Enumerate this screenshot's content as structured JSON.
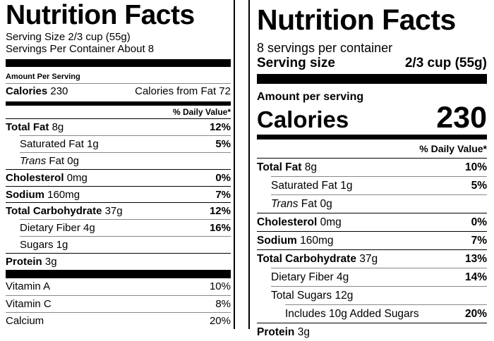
{
  "labels": [
    {
      "title": "Nutrition Facts",
      "serving_size": "Serving Size 2/3 cup (55g)",
      "servings": "Servings Per Container About 8",
      "amount_per_serving": "Amount Per Serving",
      "calories_label": "Calories",
      "calories": "230",
      "calories_from_fat": "Calories from Fat 72",
      "daily_value_header": "% Daily Value*",
      "nutrients": [
        {
          "name": "Total Fat",
          "amount": "8g",
          "dv": "12%",
          "sub": [
            {
              "name": "Saturated Fat",
              "amount": "1g",
              "dv": "5%"
            },
            {
              "italic": "Trans",
              "name": "Fat",
              "amount": "0g"
            }
          ]
        },
        {
          "name": "Cholesterol",
          "amount": "0mg",
          "dv": "0%"
        },
        {
          "name": "Sodium",
          "amount": "160mg",
          "dv": "7%"
        },
        {
          "name": "Total Carbohydrate",
          "amount": "37g",
          "dv": "12%",
          "sub": [
            {
              "name": "Dietary Fiber",
              "amount": "4g",
              "dv": "16%"
            },
            {
              "name": "Sugars",
              "amount": "1g"
            }
          ]
        },
        {
          "name": "Protein",
          "amount": "3g"
        }
      ],
      "vitamins": [
        {
          "name": "Vitamin A",
          "dv": "10%"
        },
        {
          "name": "Vitamin C",
          "dv": "8%"
        },
        {
          "name": "Calcium",
          "dv": "20%"
        }
      ]
    },
    {
      "title": "Nutrition Facts",
      "servings": "8 servings per container",
      "serving_size_label": "Serving size",
      "serving_size": "2/3 cup (55g)",
      "amount_per_serving": "Amount per serving",
      "calories_label": "Calories",
      "calories": "230",
      "daily_value_header": "% Daily Value*",
      "nutrients": [
        {
          "name": "Total Fat",
          "amount": "8g",
          "dv": "10%",
          "sub": [
            {
              "name": "Saturated Fat",
              "amount": "1g",
              "dv": "5%"
            },
            {
              "italic": "Trans",
              "name": "Fat",
              "amount": "0g"
            }
          ]
        },
        {
          "name": "Cholesterol",
          "amount": "0mg",
          "dv": "0%"
        },
        {
          "name": "Sodium",
          "amount": "160mg",
          "dv": "7%"
        },
        {
          "name": "Total Carbohydrate",
          "amount": "37g",
          "dv": "13%",
          "sub": [
            {
              "name": "Dietary Fiber",
              "amount": "4g",
              "dv": "14%"
            },
            {
              "name": "Total Sugars",
              "amount": "12g",
              "sub": [
                {
                  "name": "Includes 10g Added Sugars",
                  "dv": "20%"
                }
              ]
            }
          ]
        },
        {
          "name": "Protein",
          "amount": "3g"
        }
      ]
    }
  ]
}
